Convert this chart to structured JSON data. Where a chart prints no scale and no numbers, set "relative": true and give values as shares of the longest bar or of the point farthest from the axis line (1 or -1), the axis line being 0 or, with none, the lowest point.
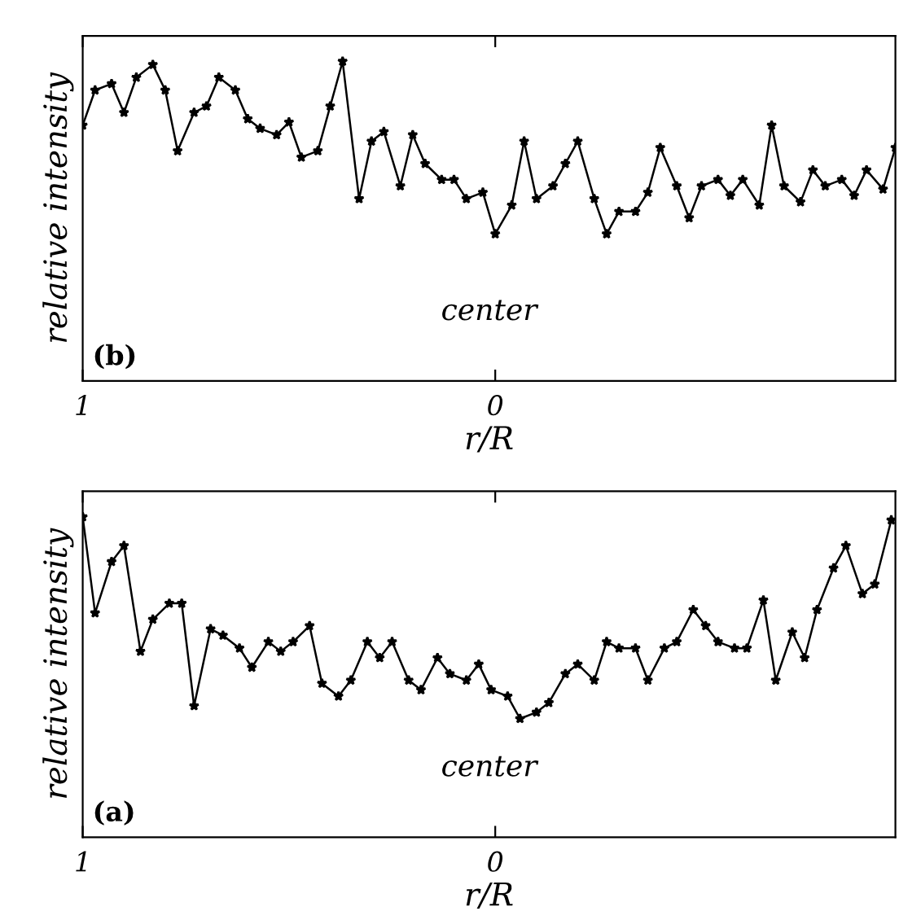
{
  "chart_data": [
    {
      "type": "line",
      "title": "(b)",
      "xlabel": "r/R",
      "ylabel": "relative intensity",
      "annotations": [
        "center"
      ],
      "relative": true,
      "xlim": [
        -1,
        0.97
      ],
      "xticks": [
        {
          "value": -1,
          "label": "1"
        },
        0
      ],
      "marker": "star",
      "line_style": "solid",
      "tick_labels": "x",
      "series": [
        {
          "color": "#000000",
          "x": [
            -1,
            -0.97,
            -0.93,
            -0.9,
            -0.87,
            -0.83,
            -0.8,
            -0.77,
            -0.73,
            -0.7,
            -0.67,
            -0.63,
            -0.6,
            -0.57,
            -0.53,
            -0.5,
            -0.47,
            -0.43,
            -0.4,
            -0.37,
            -0.33,
            -0.3,
            -0.27,
            -0.23,
            -0.2,
            -0.17,
            -0.13,
            -0.1,
            -0.07,
            -0.03,
            0,
            0.04,
            0.07,
            0.1,
            0.14,
            0.17,
            0.2,
            0.24,
            0.27,
            0.3,
            0.34,
            0.37,
            0.4,
            0.44,
            0.47,
            0.5,
            0.54,
            0.57,
            0.6,
            0.64,
            0.67,
            0.7,
            0.74,
            0.77,
            0.8,
            0.84,
            0.87,
            0.9,
            0.94,
            0.97
          ],
          "values": [
            0.8,
            0.91,
            0.93,
            0.84,
            0.95,
            0.99,
            0.91,
            0.72,
            0.84,
            0.86,
            0.95,
            0.91,
            0.82,
            0.79,
            0.77,
            0.81,
            0.7,
            0.72,
            0.86,
            1.0,
            0.57,
            0.75,
            0.78,
            0.61,
            0.77,
            0.68,
            0.63,
            0.63,
            0.57,
            0.59,
            0.46,
            0.55,
            0.75,
            0.57,
            0.61,
            0.68,
            0.75,
            0.57,
            0.46,
            0.53,
            0.53,
            0.59,
            0.73,
            0.61,
            0.51,
            0.61,
            0.63,
            0.58,
            0.63,
            0.55,
            0.8,
            0.61,
            0.56,
            0.66,
            0.61,
            0.63,
            0.58,
            0.66,
            0.6,
            0.73
          ]
        }
      ]
    },
    {
      "type": "line",
      "title": "(a)",
      "xlabel": "r/R",
      "ylabel": "relative intensity",
      "annotations": [
        "center"
      ],
      "relative": true,
      "xlim": [
        -1,
        0.97
      ],
      "xticks": [
        {
          "value": -1,
          "label": "1"
        },
        0
      ],
      "marker": "star",
      "line_style": "solid",
      "tick_labels": "x",
      "series": [
        {
          "color": "#000000",
          "x": [
            -1,
            -0.97,
            -0.93,
            -0.9,
            -0.86,
            -0.83,
            -0.79,
            -0.76,
            -0.73,
            -0.69,
            -0.66,
            -0.62,
            -0.59,
            -0.55,
            -0.52,
            -0.49,
            -0.45,
            -0.42,
            -0.38,
            -0.35,
            -0.31,
            -0.28,
            -0.25,
            -0.21,
            -0.18,
            -0.14,
            -0.11,
            -0.07,
            -0.04,
            -0.01,
            0.03,
            0.06,
            0.1,
            0.13,
            0.17,
            0.2,
            0.24,
            0.27,
            0.3,
            0.34,
            0.37,
            0.41,
            0.44,
            0.48,
            0.51,
            0.54,
            0.58,
            0.61,
            0.65,
            0.68,
            0.72,
            0.75,
            0.78,
            0.82,
            0.85,
            0.89,
            0.92,
            0.96
          ],
          "values": [
            1.0,
            0.7,
            0.86,
            0.91,
            0.58,
            0.68,
            0.73,
            0.73,
            0.41,
            0.65,
            0.63,
            0.59,
            0.53,
            0.61,
            0.58,
            0.61,
            0.66,
            0.48,
            0.44,
            0.49,
            0.61,
            0.56,
            0.61,
            0.49,
            0.46,
            0.56,
            0.51,
            0.49,
            0.54,
            0.46,
            0.44,
            0.37,
            0.39,
            0.42,
            0.51,
            0.54,
            0.49,
            0.61,
            0.59,
            0.59,
            0.49,
            0.59,
            0.61,
            0.71,
            0.66,
            0.61,
            0.59,
            0.59,
            0.74,
            0.49,
            0.64,
            0.56,
            0.71,
            0.84,
            0.91,
            0.76,
            0.79,
            0.99
          ]
        }
      ]
    }
  ]
}
